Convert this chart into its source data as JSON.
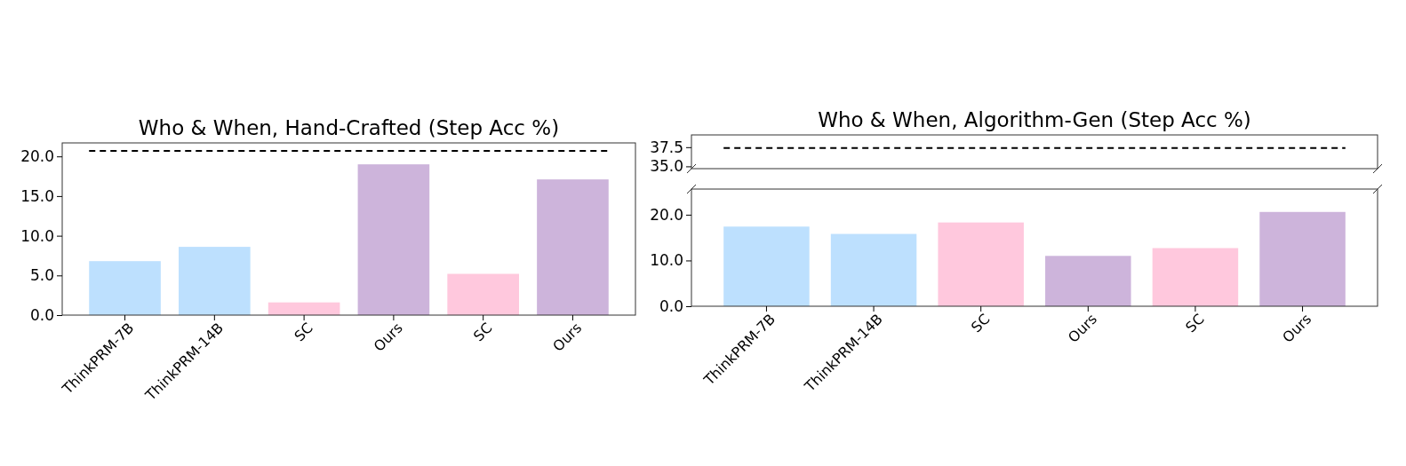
{
  "chart_data": [
    {
      "type": "bar",
      "title": "Who & When, Algorithm-Gen (Step Acc %)",
      "categories": [
        null,
        null,
        null,
        null,
        null,
        null
      ],
      "values": [
        null,
        null,
        null,
        null,
        null,
        null
      ],
      "ylim": [
        34.7,
        39.1
      ],
      "yticks": [
        {
          "value": 35,
          "label": "35.0"
        },
        {
          "value": 37.5,
          "label": "37.5"
        }
      ],
      "ref_lines": [
        {
          "axis": "y",
          "value": 37.4,
          "label": null,
          "color": "#000000",
          "line_style": "dashed"
        }
      ],
      "tick_labels": "y"
    },
    {
      "type": "bar",
      "title": "Who & When, Hand-Crafted (Step Acc %)",
      "categories": [
        "ThinkPRM-7B",
        "ThinkPRM-14B",
        "SC",
        "Ours",
        "SC",
        "Ours"
      ],
      "values": [
        6.8,
        8.6,
        1.6,
        19.0,
        5.2,
        17.1
      ],
      "colors": [
        "#bde0fe",
        "#bde0fe",
        "#ffc8dd",
        "#cdb4db",
        "#ffc8dd",
        "#cdb4db"
      ],
      "ylim": [
        0,
        21.7
      ],
      "yticks": [
        {
          "value": 0,
          "label": "0.0"
        },
        {
          "value": 5,
          "label": "5.0"
        },
        {
          "value": 10,
          "label": "10.0"
        },
        {
          "value": 15,
          "label": "15.0"
        },
        {
          "value": 20,
          "label": "20.0"
        }
      ],
      "ref_lines": [
        {
          "axis": "y",
          "value": 20.7,
          "label": null,
          "color": "#000000",
          "line_style": "dashed"
        }
      ]
    },
    {
      "type": "bar",
      "categories": [
        "ThinkPRM-7B",
        "ThinkPRM-14B",
        "SC",
        "Ours",
        "SC",
        "Ours"
      ],
      "values": [
        17.4,
        15.8,
        18.3,
        11.0,
        12.7,
        20.6
      ],
      "colors": [
        "#bde0fe",
        "#bde0fe",
        "#ffc8dd",
        "#cdb4db",
        "#ffc8dd",
        "#cdb4db"
      ],
      "ylim": [
        0,
        25.6
      ],
      "yticks": [
        {
          "value": 0,
          "label": "0.0"
        },
        {
          "value": 10,
          "label": "10.0"
        },
        {
          "value": 20,
          "label": "20.0"
        }
      ]
    }
  ]
}
